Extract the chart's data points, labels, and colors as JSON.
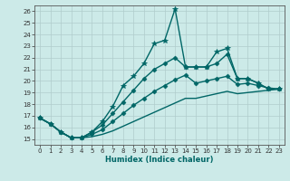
{
  "xlabel": "Humidex (Indice chaleur)",
  "background_color": "#cceae8",
  "grid_color": "#b0cccc",
  "line_color": "#006666",
  "xlim": [
    -0.5,
    23.5
  ],
  "ylim": [
    14.5,
    26.5
  ],
  "xticks": [
    0,
    1,
    2,
    3,
    4,
    5,
    6,
    7,
    8,
    9,
    10,
    11,
    12,
    13,
    14,
    15,
    16,
    17,
    18,
    19,
    20,
    21,
    22,
    23
  ],
  "yticks": [
    15,
    16,
    17,
    18,
    19,
    20,
    21,
    22,
    23,
    24,
    25,
    26
  ],
  "series": [
    {
      "x": [
        0,
        1,
        2,
        3,
        4,
        5,
        6,
        7,
        8,
        9,
        10,
        11,
        12,
        13,
        14,
        15,
        16,
        17,
        18,
        19,
        20,
        21,
        22,
        23
      ],
      "y": [
        16.8,
        16.3,
        15.6,
        15.1,
        15.1,
        15.6,
        16.5,
        17.8,
        19.6,
        20.4,
        21.5,
        23.2,
        23.5,
        26.2,
        21.2,
        21.2,
        21.2,
        22.5,
        22.8,
        20.2,
        20.2,
        19.8,
        19.3,
        19.3
      ],
      "marker": "*",
      "markersize": 4,
      "linewidth": 1.0
    },
    {
      "x": [
        0,
        1,
        2,
        3,
        4,
        5,
        6,
        7,
        8,
        9,
        10,
        11,
        12,
        13,
        14,
        15,
        16,
        17,
        18,
        19,
        20,
        21,
        22,
        23
      ],
      "y": [
        16.8,
        16.3,
        15.6,
        15.1,
        15.1,
        15.6,
        16.2,
        17.2,
        18.2,
        19.2,
        20.2,
        21.0,
        21.5,
        22.0,
        21.2,
        21.2,
        21.2,
        21.5,
        22.3,
        20.2,
        20.2,
        19.8,
        19.3,
        19.3
      ],
      "marker": "D",
      "markersize": 2.5,
      "linewidth": 1.0
    },
    {
      "x": [
        0,
        1,
        2,
        3,
        4,
        5,
        6,
        7,
        8,
        9,
        10,
        11,
        12,
        13,
        14,
        15,
        16,
        17,
        18,
        19,
        20,
        21,
        22,
        23
      ],
      "y": [
        16.8,
        16.3,
        15.6,
        15.1,
        15.1,
        15.4,
        15.8,
        16.5,
        17.2,
        17.9,
        18.5,
        19.1,
        19.6,
        20.1,
        20.5,
        19.8,
        20.0,
        20.2,
        20.4,
        19.7,
        19.8,
        19.6,
        19.4,
        19.3
      ],
      "marker": "D",
      "markersize": 2.5,
      "linewidth": 1.0
    },
    {
      "x": [
        0,
        1,
        2,
        3,
        4,
        5,
        6,
        7,
        8,
        9,
        10,
        11,
        12,
        13,
        14,
        15,
        16,
        17,
        18,
        19,
        20,
        21,
        22,
        23
      ],
      "y": [
        16.8,
        16.3,
        15.6,
        15.1,
        15.1,
        15.2,
        15.4,
        15.7,
        16.1,
        16.5,
        16.9,
        17.3,
        17.7,
        18.1,
        18.5,
        18.5,
        18.7,
        18.9,
        19.1,
        18.9,
        19.0,
        19.1,
        19.2,
        19.3
      ],
      "marker": null,
      "linewidth": 1.0
    }
  ]
}
